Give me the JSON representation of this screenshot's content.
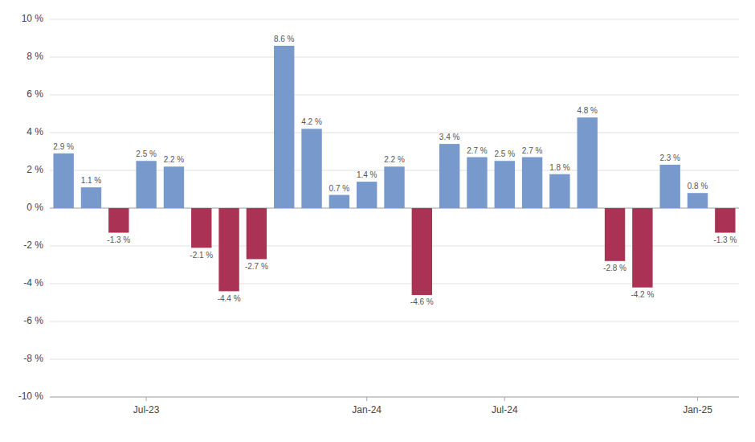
{
  "chart_data": {
    "type": "bar",
    "categories": [
      null,
      null,
      null,
      "Jul-23",
      null,
      null,
      null,
      null,
      null,
      null,
      null,
      "Jan-24",
      null,
      null,
      null,
      null,
      "Jul-24",
      null,
      null,
      null,
      null,
      null,
      null,
      "Jan-25",
      null
    ],
    "values": [
      2.9,
      1.1,
      -1.3,
      2.5,
      2.2,
      -2.1,
      -4.4,
      -2.7,
      8.6,
      4.2,
      0.7,
      1.4,
      2.2,
      -4.6,
      3.4,
      2.7,
      2.5,
      2.7,
      1.8,
      4.8,
      -2.8,
      -4.2,
      2.3,
      0.8,
      -1.3
    ],
    "value_labels": [
      "2.9 %",
      "1.1 %",
      "-1.3 %",
      "2.5 %",
      "2.2 %",
      "-2.1 %",
      "-4.4 %",
      "-2.7 %",
      "8.6 %",
      "4.2 %",
      "0.7 %",
      "1.4 %",
      "2.2 %",
      "-4.6 %",
      "3.4 %",
      "2.7 %",
      "2.5 %",
      "2.7 %",
      "1.8 %",
      "4.8 %",
      "-2.8 %",
      "-4.2 %",
      "2.3 %",
      "0.8 %",
      "-1.3 %"
    ],
    "colors": [
      "#7799cc",
      "#7799cc",
      "#aa3355",
      "#7799cc",
      "#7799cc",
      "#aa3355",
      "#aa3355",
      "#aa3355",
      "#7799cc",
      "#7799cc",
      "#7799cc",
      "#7799cc",
      "#7799cc",
      "#aa3355",
      "#7799cc",
      "#7799cc",
      "#7799cc",
      "#7799cc",
      "#7799cc",
      "#7799cc",
      "#aa3355",
      "#aa3355",
      "#7799cc",
      "#7799cc",
      "#aa3355"
    ],
    "ylim": [
      -10,
      10
    ],
    "yticks": [
      {
        "value": -10,
        "label": "-10 %"
      },
      {
        "value": -8,
        "label": "-8 %"
      },
      {
        "value": -6,
        "label": "-6 %"
      },
      {
        "value": -4,
        "label": "-4 %"
      },
      {
        "value": -2,
        "label": "-2 %"
      },
      {
        "value": 0,
        "label": "0 %"
      },
      {
        "value": 2,
        "label": "2 %"
      },
      {
        "value": 4,
        "label": "4 %"
      },
      {
        "value": 6,
        "label": "6 %"
      },
      {
        "value": 8,
        "label": "8 %"
      },
      {
        "value": 10,
        "label": "10 %"
      }
    ],
    "grid": true,
    "data_labels": true
  }
}
